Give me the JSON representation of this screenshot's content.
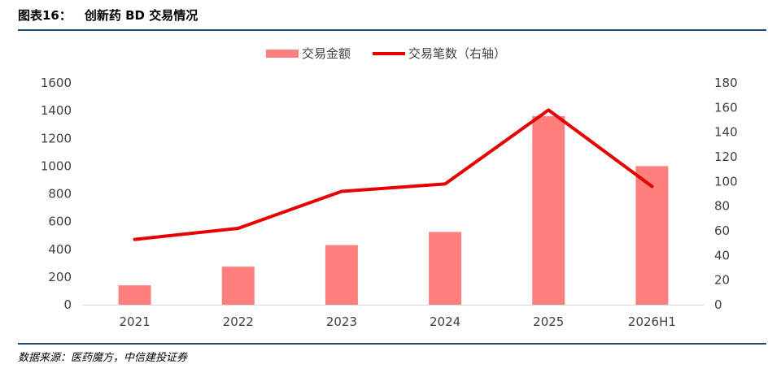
{
  "header": {
    "figure_label": "图表16：",
    "figure_title": "创新药 BD 交易情况"
  },
  "footer": {
    "source": "数据来源：医药魔方，中信建投证券"
  },
  "colors": {
    "bar": "#ff7f7f",
    "line": "#e60000",
    "rule": "#1f4e79",
    "axis_text": "#404040"
  },
  "chart_data": {
    "type": "bar",
    "categories": [
      "2021",
      "2022",
      "2023",
      "2024",
      "2025",
      "2026H1"
    ],
    "series": [
      {
        "name": "交易金额",
        "type": "bar",
        "axis": "left",
        "values": [
          140,
          275,
          430,
          525,
          1360,
          1000
        ]
      },
      {
        "name": "交易笔数（右轴）",
        "type": "line",
        "axis": "right",
        "values": [
          53,
          62,
          92,
          98,
          158,
          96
        ]
      }
    ],
    "ylim": [
      0,
      1600
    ],
    "yticks": [
      0,
      200,
      400,
      600,
      800,
      1000,
      1200,
      1400,
      1600
    ],
    "y2lim": [
      0,
      180
    ],
    "y2ticks": [
      0,
      20,
      40,
      60,
      80,
      100,
      120,
      140,
      160,
      180
    ],
    "legend": "top-center",
    "grid": false
  }
}
